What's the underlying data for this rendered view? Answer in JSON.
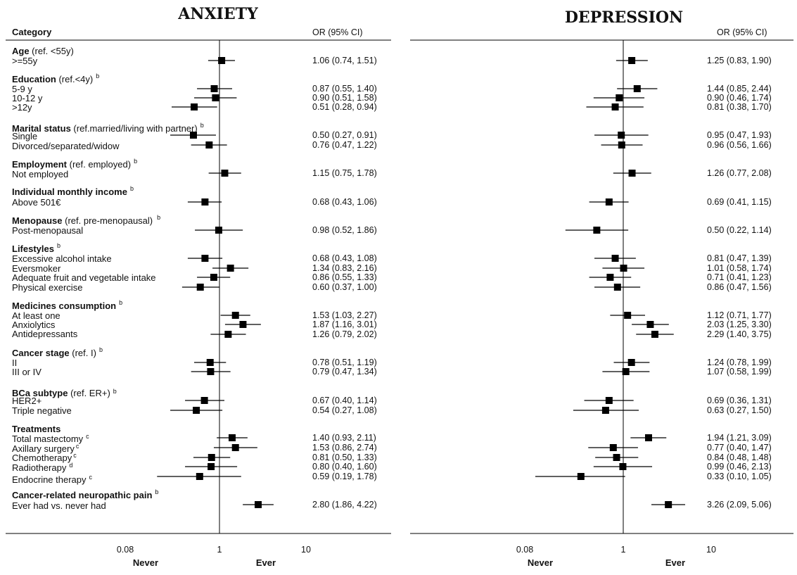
{
  "header": {
    "category": "Category",
    "or_label": "OR (95% CI)"
  },
  "colors": {
    "marker": "#000000",
    "line": "#000000"
  },
  "chart_data": [
    {
      "type": "forest",
      "title": "ANXIETY",
      "x_scale": "log",
      "xlim": [
        0.01,
        50
      ],
      "reference_line": 1,
      "x_ticks": [
        "0.08",
        "1",
        "10"
      ],
      "axis_words": {
        "left": "Never",
        "right": "Ever"
      },
      "rows": [
        {
          "or": 1.06,
          "lo": 0.74,
          "hi": 1.51,
          "text": "1.06 (0.74, 1.51)"
        },
        {
          "or": 0.87,
          "lo": 0.55,
          "hi": 1.4,
          "text": "0.87 (0.55, 1.40)"
        },
        {
          "or": 0.9,
          "lo": 0.51,
          "hi": 1.58,
          "text": "0.90 (0.51, 1.58)"
        },
        {
          "or": 0.51,
          "lo": 0.28,
          "hi": 0.94,
          "text": "0.51 (0.28, 0.94)"
        },
        {
          "or": 0.5,
          "lo": 0.27,
          "hi": 0.91,
          "text": "0.50 (0.27, 0.91)"
        },
        {
          "or": 0.76,
          "lo": 0.47,
          "hi": 1.22,
          "text": "0.76 (0.47, 1.22)"
        },
        {
          "or": 1.15,
          "lo": 0.75,
          "hi": 1.78,
          "text": "1.15 (0.75, 1.78)"
        },
        {
          "or": 0.68,
          "lo": 0.43,
          "hi": 1.06,
          "text": "0.68 (0.43, 1.06)"
        },
        {
          "or": 0.98,
          "lo": 0.52,
          "hi": 1.86,
          "text": "0.98 (0.52, 1.86)"
        },
        {
          "or": 0.68,
          "lo": 0.43,
          "hi": 1.08,
          "text": "0.68 (0.43, 1.08)"
        },
        {
          "or": 1.34,
          "lo": 0.83,
          "hi": 2.16,
          "text": "1.34 (0.83, 2.16)"
        },
        {
          "or": 0.86,
          "lo": 0.55,
          "hi": 1.33,
          "text": "0.86 (0.55, 1.33)"
        },
        {
          "or": 0.6,
          "lo": 0.37,
          "hi": 1.0,
          "text": "0.60 (0.37, 1.00)"
        },
        {
          "or": 1.53,
          "lo": 1.03,
          "hi": 2.27,
          "text": "1.53 (1.03, 2.27)"
        },
        {
          "or": 1.87,
          "lo": 1.16,
          "hi": 3.01,
          "text": "1.87 (1.16, 3.01)"
        },
        {
          "or": 1.26,
          "lo": 0.79,
          "hi": 2.02,
          "text": "1.26 (0.79, 2.02)"
        },
        {
          "or": 0.78,
          "lo": 0.51,
          "hi": 1.19,
          "text": "0.78 (0.51, 1.19)"
        },
        {
          "or": 0.79,
          "lo": 0.47,
          "hi": 1.34,
          "text": "0.79 (0.47, 1.34)"
        },
        {
          "or": 0.67,
          "lo": 0.4,
          "hi": 1.14,
          "text": "0.67 (0.40, 1.14)"
        },
        {
          "or": 0.54,
          "lo": 0.27,
          "hi": 1.08,
          "text": "0.54 (0.27, 1.08)"
        },
        {
          "or": 1.4,
          "lo": 0.93,
          "hi": 2.11,
          "text": "1.40 (0.93, 2.11)"
        },
        {
          "or": 1.53,
          "lo": 0.86,
          "hi": 2.74,
          "text": "1.53 (0.86, 2.74)"
        },
        {
          "or": 0.81,
          "lo": 0.5,
          "hi": 1.33,
          "text": "0.81 (0.50, 1.33)"
        },
        {
          "or": 0.8,
          "lo": 0.4,
          "hi": 1.6,
          "text": "0.80 (0.40, 1.60)"
        },
        {
          "or": 0.59,
          "lo": 0.19,
          "hi": 1.78,
          "text": "0.59 (0.19, 1.78)"
        },
        {
          "or": 2.8,
          "lo": 1.86,
          "hi": 4.22,
          "text": "2.80 (1.86, 4.22)"
        }
      ]
    },
    {
      "type": "forest",
      "title": "DEPRESSION",
      "x_scale": "log",
      "xlim": [
        0.01,
        50
      ],
      "reference_line": 1,
      "x_ticks": [
        "0.08",
        "1",
        "10"
      ],
      "axis_words": {
        "left": "Never",
        "right": "Ever"
      },
      "rows": [
        {
          "or": 1.25,
          "lo": 0.83,
          "hi": 1.9,
          "text": "1.25 (0.83, 1.90)"
        },
        {
          "or": 1.44,
          "lo": 0.85,
          "hi": 2.44,
          "text": "1.44 (0.85, 2.44)"
        },
        {
          "or": 0.9,
          "lo": 0.46,
          "hi": 1.74,
          "text": "0.90 (0.46, 1.74)"
        },
        {
          "or": 0.81,
          "lo": 0.38,
          "hi": 1.7,
          "text": "0.81 (0.38, 1.70)"
        },
        {
          "or": 0.95,
          "lo": 0.47,
          "hi": 1.93,
          "text": "0.95 (0.47, 1.93)"
        },
        {
          "or": 0.96,
          "lo": 0.56,
          "hi": 1.66,
          "text": "0.96 (0.56, 1.66)"
        },
        {
          "or": 1.26,
          "lo": 0.77,
          "hi": 2.08,
          "text": "1.26 (0.77, 2.08)"
        },
        {
          "or": 0.69,
          "lo": 0.41,
          "hi": 1.15,
          "text": "0.69 (0.41, 1.15)"
        },
        {
          "or": 0.5,
          "lo": 0.22,
          "hi": 1.14,
          "text": "0.50 (0.22, 1.14)"
        },
        {
          "or": 0.81,
          "lo": 0.47,
          "hi": 1.39,
          "text": "0.81 (0.47, 1.39)"
        },
        {
          "or": 1.01,
          "lo": 0.58,
          "hi": 1.74,
          "text": "1.01 (0.58, 1.74)"
        },
        {
          "or": 0.71,
          "lo": 0.41,
          "hi": 1.23,
          "text": "0.71 (0.41, 1.23)"
        },
        {
          "or": 0.86,
          "lo": 0.47,
          "hi": 1.56,
          "text": "0.86 (0.47, 1.56)"
        },
        {
          "or": 1.12,
          "lo": 0.71,
          "hi": 1.77,
          "text": "1.12 (0.71, 1.77)"
        },
        {
          "or": 2.03,
          "lo": 1.25,
          "hi": 3.3,
          "text": "2.03 (1.25, 3.30)"
        },
        {
          "or": 2.29,
          "lo": 1.4,
          "hi": 3.75,
          "text": "2.29 (1.40, 3.75)"
        },
        {
          "or": 1.24,
          "lo": 0.78,
          "hi": 1.99,
          "text": "1.24 (0.78, 1.99)"
        },
        {
          "or": 1.07,
          "lo": 0.58,
          "hi": 1.99,
          "text": "1.07 (0.58, 1.99)"
        },
        {
          "or": 0.69,
          "lo": 0.36,
          "hi": 1.31,
          "text": "0.69 (0.36, 1.31)"
        },
        {
          "or": 0.63,
          "lo": 0.27,
          "hi": 1.5,
          "text": "0.63 (0.27, 1.50)"
        },
        {
          "or": 1.94,
          "lo": 1.21,
          "hi": 3.09,
          "text": "1.94 (1.21, 3.09)"
        },
        {
          "or": 0.77,
          "lo": 0.4,
          "hi": 1.47,
          "text": "0.77 (0.40, 1.47)"
        },
        {
          "or": 0.84,
          "lo": 0.48,
          "hi": 1.48,
          "text": "0.84 (0.48, 1.48)"
        },
        {
          "or": 0.99,
          "lo": 0.46,
          "hi": 2.13,
          "text": "0.99 (0.46, 2.13)"
        },
        {
          "or": 0.33,
          "lo": 0.1,
          "hi": 1.05,
          "text": "0.33 (0.10, 1.05)"
        },
        {
          "or": 3.26,
          "lo": 2.09,
          "hi": 5.06,
          "text": "3.26 (2.09, 5.06)"
        }
      ]
    }
  ],
  "categories": {
    "age": {
      "name": "Age",
      "ref": " (ref. <55y)",
      "sup": "",
      "items": [
        ">=55y"
      ]
    },
    "education": {
      "name": "Education",
      "ref": " (ref.<4y)",
      "sup": "b",
      "items": [
        "5-9 y",
        "10-12 y",
        ">12y"
      ]
    },
    "marital": {
      "name": "Marital status",
      "ref": " (ref.married/living with partner)",
      "sup": "b",
      "items": [
        "Single",
        "Divorced/separated/widow"
      ]
    },
    "employment": {
      "name": "Employment",
      "ref": " (ref. employed)",
      "sup": "b",
      "items": [
        "Not employed"
      ]
    },
    "income": {
      "name": "Individual monthly income",
      "ref": "",
      "sup": "b",
      "items": [
        "Above 501€"
      ]
    },
    "menopause": {
      "name": "Menopause",
      "ref": " (ref. pre-menopausal)",
      "sup": "b",
      "items": [
        "Post-menopausal"
      ]
    },
    "lifestyles": {
      "name": "Lifestyles",
      "ref": "",
      "sup": "b",
      "items": [
        "Excessive alcohol intake",
        "Eversmoker",
        "Adequate fruit and vegetable intake",
        "Physical exercise"
      ]
    },
    "medicines": {
      "name": "Medicines consumption",
      "ref": "",
      "sup": "b",
      "items": [
        "At least one",
        "Anxiolytics",
        "Antidepressants"
      ]
    },
    "stage": {
      "name": "Cancer stage",
      "ref": " (ref. I)",
      "sup": "b",
      "items": [
        "II",
        "III or IV"
      ]
    },
    "subtype": {
      "name": "BCa subtype",
      "ref": " (ref. ER+)",
      "sup": "b",
      "items": [
        "HER2+",
        "Triple negative"
      ]
    },
    "treatments": {
      "name": "Treatments",
      "ref": "",
      "sup": "",
      "items": [
        "Total mastectomy",
        "Axillary surgery",
        "Chemotherapy",
        "Radiotherapy",
        "Endocrine therapy"
      ],
      "item_sups": [
        "c",
        "c",
        "c",
        "d",
        "c"
      ]
    },
    "pain": {
      "name": "Cancer-related neuropathic pain",
      "ref": "",
      "sup": "b",
      "items": [
        "Ever had vs. never had"
      ]
    }
  }
}
